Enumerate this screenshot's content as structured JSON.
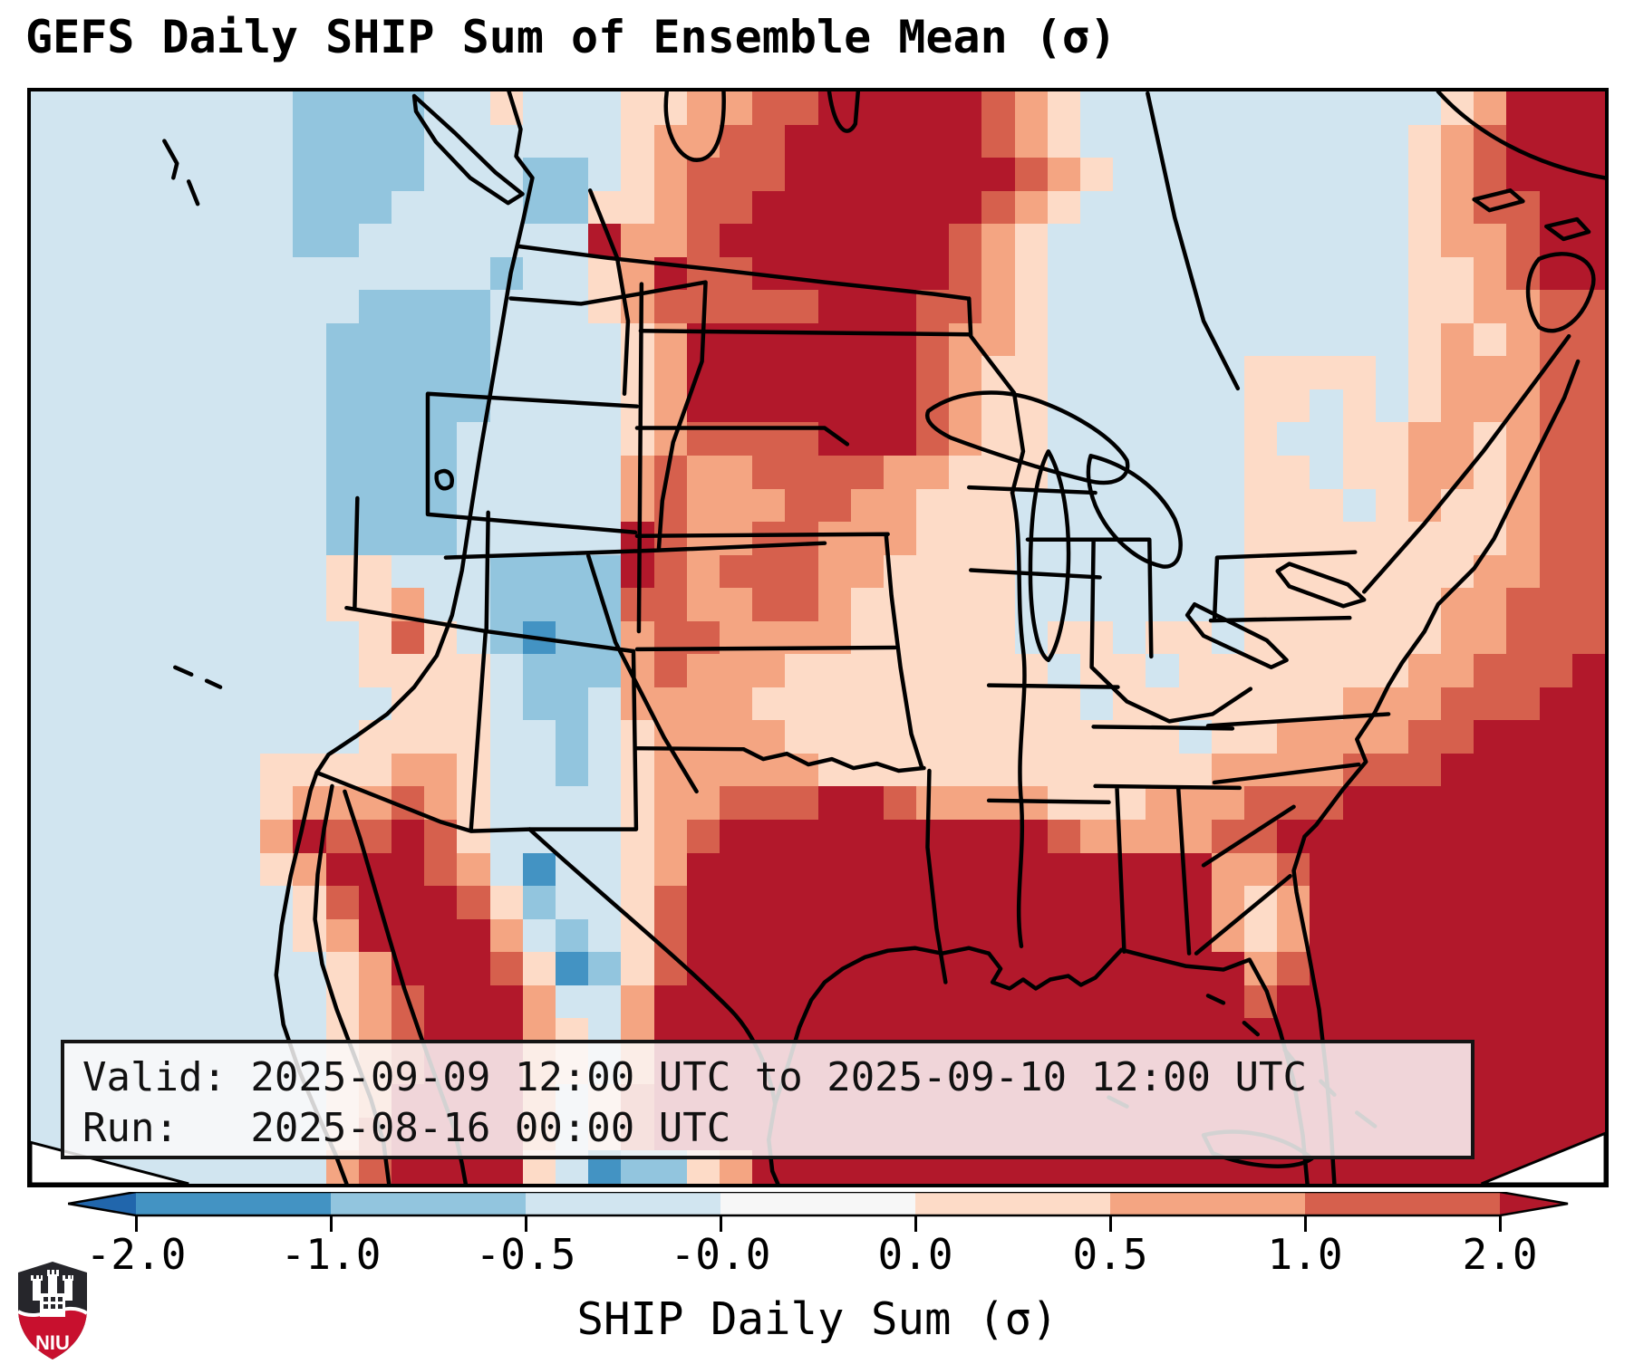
{
  "title": "GEFS Daily SHIP Sum of Ensemble Mean (σ)",
  "info_box": {
    "valid_line": "Valid: 2025-09-09 12:00 UTC to 2025-09-10 12:00 UTC",
    "run_line": "Run:   2025-08-16 00:00 UTC"
  },
  "colorbar": {
    "label": "SHIP Daily Sum (σ)",
    "tick_labels": [
      "-2.0",
      "-1.0",
      "-0.5",
      "-0.0",
      "0.0",
      "0.5",
      "1.0",
      "2.0"
    ],
    "boundaries": [
      -2.0,
      -1.0,
      -0.5,
      -0.0,
      0.0,
      0.5,
      1.0,
      2.0
    ],
    "segment_colors": [
      "#4393c3",
      "#92c5de",
      "#d1e5f0",
      "#f7f7f7",
      "#fddbc7",
      "#f4a582",
      "#d6604d"
    ],
    "extend_left_color": "#2166ac",
    "extend_right_color": "#b2182b",
    "extend": "both"
  },
  "logo": {
    "text": "NIU",
    "shield_top_color": "#26262b",
    "shield_bottom_color": "#c8102e"
  },
  "chart_data": {
    "type": "heatmap",
    "title": "GEFS Daily SHIP Sum of Ensemble Mean (σ)",
    "units": "sigma",
    "value_label": "SHIP Daily Sum (σ)",
    "value_range": [
      -2.0,
      2.0
    ],
    "palette": {
      "0": "#2166ac",
      "1": "#4393c3",
      "2": "#92c5de",
      "3": "#d1e5f0",
      "4": "#f7f7f7",
      "5": "#fddbc7",
      "6": "#f4a582",
      "7": "#d6604d",
      "8": "#b2182b"
    },
    "palette_bins": {
      "1": "[-2.0,-1.0]",
      "2": "[-1.0,-0.5]",
      "3": "[-0.5,-0.0]",
      "4": "[-0.0,0.0]",
      "5": "[0.0,0.5]",
      "6": "[0.5,1.0]",
      "7": "[1.0,2.0]",
      "8": ">2.0",
      "0": "<-2.0"
    },
    "grid_cols": 48,
    "grid_rows_count": 33,
    "grid_rows": [
      "3:8 2:4 3:2 5:1 3:3 5:2 6:2 7:2 8:5 7:1 6:1 5:1 3:11 5:1 6:1 8:3",
      "3:8 2:4 3:6 5:1 6:2 7:2 8:6 7:1 6:1 5:1 3:10 5:1 6:1 7:1 8:3",
      "3:8 2:4 3:3 2:2 3:1 5:1 6:1 7:3 8:7 7:1 6:1 5:1 3:9 5:1 6:1 7:1 8:3",
      "3:8 2:3 3:4 2:2 5:2 6:1 7:2 8:7 7:1 6:1 5:1 3:10 5:1 6:1 7:2 8:2",
      "3:8 2:2 3:7 8:1 6:2 7:1 8:7 7:1 6:1 5:1 3:11 5:1 6:2 7:1 8:2",
      "3:14 2:1 3:2 5:1 6:1 8:1 7:2 8:6 7:1 6:1 5:1 3:11 5:2 6:1 7:1 8:2",
      "3:10 2:4 3:3 5:1 6:1 7:5 8:3 7:2 6:1 5:1 3:11 5:2 6:2 7:2",
      "3:9 2:5 3:4 5:1 6:1 8:7 7:1 6:2 5:1 3:11 5:1 6:1 5:1 6:1 7:2",
      "3:9 2:5 3:4 5:1 6:1 8:7 7:1 6:1 5:2 3:6 5:4 3:1 5:1 6:3 7:2",
      "3:9 2:5 3:4 5:1 6:1 8:7 7:1 6:1 5:2 3:6 5:2 3:1 5:1 3:1 5:1 6:3 7:2",
      "3:9 2:4 3:5 5:1 6:1 7:4 8:3 7:1 6:1 5:2 3:6 5:1 3:2 5:2 6:2 5:1 6:1 7:2",
      "3:9 2:4 3:5 6:1 7:1 6:2 7:4 6:2 5:3 3:6 5:2 3:1 5:2 6:2 5:1 6:1 7:2",
      "3:9 2:4 3:5 6:1 7:1 6:3 7:2 6:2 5:3 3:7 5:3 3:1 5:1 6:1 5:2 6:1 7:2",
      "3:9 2:4 3:5 8:1 7:1 6:2 7:2 6:3 5:3 3:7 5:8 6:1 7:2",
      "3:9 5:2 3:3 2:4 8:1 7:1 6:1 7:3 6:2 5:4 3:7 5:7 6:2 7:2",
      "3:9 5:2 6:1 3:2 2:4 7:2 6:2 7:2 6:1 5:5 3:7 5:6 6:2 7:3",
      "3:10 5:1 7:1 5:1 3:1 2:1 1:1 2:2 6:1 7:2 6:4 5:5 3:1 5:2 3:1 5:2 3:1 5:6 6:2 7:3",
      "3:10 5:4 3:1 2:3 6:1 7:1 6:3 5:8 3:1 5:2 3:1 5:7 6:2 7:3 8:1",
      "3:11 5:3 3:1 2:2 3:1 6:4 5:10 3:1 5:7 6:3 7:3 8:2",
      "3:10 5:4 3:2 2:1 3:1 5:1 6:4 5:12 3:1 5:2 6:4 7:2 8:4",
      "3:7 5:4 6:2 5:1 3:2 2:1 3:1 5:1 6:5 5:12 6:4 7:3 8:5",
      "3:7 5:1 6:3 7:1 6:1 5:1 3:4 5:1 6:2 7:3 8:2 7:1 6:4 5:3 6:3 7:3 8:8",
      "3:7 6:1 8:1 7:2 8:1 7:1 5:1 3:4 5:1 6:1 7:1 8:10 7:1 6:4 7:2 8:10",
      "3:7 5:1 6:1 8:3 7:1 6:1 3:1 1:1 3:2 5:1 6:1 8:16 6:2 7:1 8:9",
      "3:8 5:1 7:1 8:3 7:1 5:1 2:1 3:2 5:1 7:1 8:16 6:1 5:1 6:1 8:9",
      "3:8 5:1 6:1 8:4 6:1 3:1 2:1 3:1 5:1 7:1 8:16 6:1 5:1 6:1 8:9",
      "3:9 5:1 6:1 8:3 7:1 5:1 1:1 2:1 5:1 7:1 8:17 6:1 7:1 8:9",
      "3:9 5:1 6:1 7:1 8:3 6:1 3:2 6:1 8:18 7:1 8:10",
      "3:9 5:1 6:1 7:1 8:3 6:1 5:1 3:1 6:1 8:29",
      "3:9 5:1 6:1 7:1 8:3 6:1 5:1 3:1 6:1 8:29",
      "3:9 5:1 6:1 8:4 6:1 3:1 5:1 7:1 8:29",
      "3:9 5:1 7:1 8:4 6:1 3:1 5:1 7:1 8:29",
      "3:9 6:1 7:1 8:4 5:1 3:1 1:1 2:2 5:1 6:1 8:26"
    ]
  }
}
